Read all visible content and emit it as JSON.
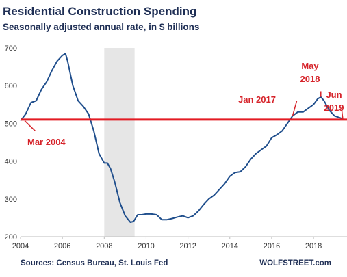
{
  "chart_data": {
    "type": "line",
    "title": "Residential Construction Spending",
    "subtitle": "Seasonally adjusted annual rate, in $ billions",
    "xlabel": "",
    "ylabel": "",
    "xlim": [
      2004,
      2019.6
    ],
    "ylim": [
      200,
      700
    ],
    "x_ticks": [
      2004,
      2006,
      2008,
      2010,
      2012,
      2014,
      2016,
      2018
    ],
    "y_ticks": [
      200,
      300,
      400,
      500,
      600,
      700
    ],
    "grid": false,
    "recession_band": [
      2008.0,
      2009.45
    ],
    "reference_line": {
      "y": 510,
      "color": "#e31b23"
    },
    "series": [
      {
        "color": "#1f4e8c",
        "x": [
          2004.0,
          2004.25,
          2004.5,
          2004.75,
          2005.0,
          2005.25,
          2005.5,
          2005.75,
          2006.0,
          2006.15,
          2006.25,
          2006.5,
          2006.75,
          2007.0,
          2007.25,
          2007.5,
          2007.75,
          2008.0,
          2008.15,
          2008.3,
          2008.5,
          2008.75,
          2009.0,
          2009.25,
          2009.4,
          2009.6,
          2009.8,
          2010.0,
          2010.25,
          2010.5,
          2010.75,
          2011.0,
          2011.25,
          2011.5,
          2011.75,
          2012.0,
          2012.25,
          2012.5,
          2012.75,
          2013.0,
          2013.25,
          2013.5,
          2013.75,
          2014.0,
          2014.25,
          2014.5,
          2014.75,
          2015.0,
          2015.25,
          2015.5,
          2015.75,
          2016.0,
          2016.25,
          2016.5,
          2016.75,
          2017.0,
          2017.25,
          2017.5,
          2017.75,
          2018.0,
          2018.2,
          2018.35,
          2018.5,
          2018.75,
          2019.0,
          2019.25,
          2019.4
        ],
        "y": [
          507,
          525,
          555,
          560,
          590,
          610,
          640,
          665,
          680,
          685,
          665,
          600,
          560,
          545,
          525,
          480,
          420,
          395,
          395,
          380,
          345,
          290,
          255,
          238,
          240,
          258,
          258,
          260,
          260,
          258,
          245,
          245,
          248,
          252,
          255,
          250,
          255,
          268,
          285,
          300,
          310,
          325,
          340,
          360,
          370,
          372,
          385,
          405,
          420,
          430,
          440,
          462,
          470,
          480,
          500,
          520,
          530,
          530,
          540,
          550,
          565,
          570,
          560,
          535,
          520,
          515,
          512
        ]
      }
    ],
    "annotations": [
      {
        "text": "Mar 2004",
        "x": 2004.2,
        "y": 507
      },
      {
        "text": "Jan 2017",
        "x": 2017.0,
        "y": 520
      },
      {
        "text": "May",
        "x": 2018.35,
        "y": 570
      },
      {
        "text": "2018",
        "x": 2018.35,
        "y": 570
      },
      {
        "text": "Jun",
        "x": 2019.4,
        "y": 512
      },
      {
        "text": "2019",
        "x": 2019.4,
        "y": 512
      }
    ],
    "source": "Sources: Census Bureau, St. Louis Fed",
    "brand": "WOLFSTREET.com"
  }
}
